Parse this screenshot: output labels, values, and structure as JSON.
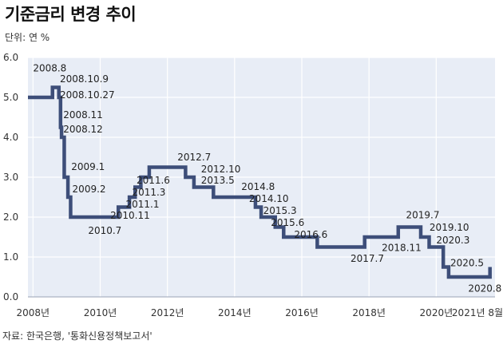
{
  "title": "기준금리 변경 추이",
  "unit_label": "단위: 연 %",
  "source": "자료: 한국은행, '통화신용정책보고서'",
  "colors": {
    "line": "#3d4e79",
    "plot_bg": "#e8edf6",
    "grid": "#ffffff"
  },
  "chart_data": {
    "type": "line",
    "title": "기준금리 변경 추이",
    "ylabel": "단위: 연 %",
    "ylim": [
      0,
      6
    ],
    "y_ticks": [
      "0.0",
      "1.0",
      "2.0",
      "3.0",
      "4.0",
      "5.0",
      "6.0"
    ],
    "x_ticks": [
      {
        "t": 2008.0,
        "label": "2008년"
      },
      {
        "t": 2010.0,
        "label": "2010년"
      },
      {
        "t": 2012.0,
        "label": "2012년"
      },
      {
        "t": 2014.0,
        "label": "2014년"
      },
      {
        "t": 2016.0,
        "label": "2016년"
      },
      {
        "t": 2018.0,
        "label": "2018년"
      },
      {
        "t": 2020.0,
        "label": "2020년"
      },
      {
        "t": 2021.6,
        "label": "2021년 8월"
      }
    ],
    "xlim": [
      2007.85,
      2021.75
    ],
    "grid": true,
    "series": [
      {
        "values": [
          {
            "t": 2007.85,
            "v": 5.0
          },
          {
            "t": 2008.58,
            "v": 5.25
          },
          {
            "t": 2008.77,
            "v": 5.0
          },
          {
            "t": 2008.82,
            "v": 4.25
          },
          {
            "t": 2008.85,
            "v": 4.0
          },
          {
            "t": 2008.93,
            "v": 3.0
          },
          {
            "t": 2009.04,
            "v": 2.5
          },
          {
            "t": 2009.12,
            "v": 2.0
          },
          {
            "t": 2010.54,
            "v": 2.25
          },
          {
            "t": 2010.87,
            "v": 2.5
          },
          {
            "t": 2011.04,
            "v": 2.75
          },
          {
            "t": 2011.21,
            "v": 3.0
          },
          {
            "t": 2011.46,
            "v": 3.25
          },
          {
            "t": 2012.54,
            "v": 3.0
          },
          {
            "t": 2012.79,
            "v": 2.75
          },
          {
            "t": 2013.37,
            "v": 2.5
          },
          {
            "t": 2014.62,
            "v": 2.25
          },
          {
            "t": 2014.79,
            "v": 2.0
          },
          {
            "t": 2015.21,
            "v": 1.75
          },
          {
            "t": 2015.46,
            "v": 1.5
          },
          {
            "t": 2016.46,
            "v": 1.25
          },
          {
            "t": 2017.87,
            "v": 1.5
          },
          {
            "t": 2018.87,
            "v": 1.75
          },
          {
            "t": 2019.54,
            "v": 1.5
          },
          {
            "t": 2019.79,
            "v": 1.25
          },
          {
            "t": 2020.21,
            "v": 0.75
          },
          {
            "t": 2020.37,
            "v": 0.5
          },
          {
            "t": 2021.6,
            "v": 0.5
          },
          {
            "t": 2021.6,
            "v": 0.75
          }
        ]
      }
    ],
    "annotations": [
      {
        "label": "2008.8",
        "t": 2008.0,
        "v": 5.65
      },
      {
        "label": "2008.10.9",
        "t": 2008.8,
        "v": 5.38
      },
      {
        "label": "2008.10.27",
        "t": 2008.8,
        "v": 4.98
      },
      {
        "label": "2008.11",
        "t": 2008.9,
        "v": 4.48
      },
      {
        "label": "2008.12",
        "t": 2008.9,
        "v": 4.12
      },
      {
        "label": "2009.1",
        "t": 2009.14,
        "v": 3.18
      },
      {
        "label": "2009.2",
        "t": 2009.17,
        "v": 2.62
      },
      {
        "label": "2010.7",
        "t": 2009.64,
        "v": 1.58
      },
      {
        "label": "2010.11",
        "t": 2010.3,
        "v": 1.96
      },
      {
        "label": "2011.1",
        "t": 2010.76,
        "v": 2.24
      },
      {
        "label": "2011.3",
        "t": 2010.95,
        "v": 2.54
      },
      {
        "label": "2011.6",
        "t": 2011.08,
        "v": 2.84
      },
      {
        "label": "2012.7",
        "t": 2012.3,
        "v": 3.42
      },
      {
        "label": "2012.10",
        "t": 2013.0,
        "v": 3.12
      },
      {
        "label": "2013.5",
        "t": 2013.0,
        "v": 2.84
      },
      {
        "label": "2014.8",
        "t": 2014.2,
        "v": 2.68
      },
      {
        "label": "2014.10",
        "t": 2014.43,
        "v": 2.38
      },
      {
        "label": "2015.3",
        "t": 2014.85,
        "v": 2.08
      },
      {
        "label": "2015.6",
        "t": 2015.08,
        "v": 1.78
      },
      {
        "label": "2016.6",
        "t": 2015.77,
        "v": 1.48
      },
      {
        "label": "2017.7",
        "t": 2017.45,
        "v": 0.88
      },
      {
        "label": "2018.11",
        "t": 2018.38,
        "v": 1.15
      },
      {
        "label": "2019.7",
        "t": 2019.1,
        "v": 1.97
      },
      {
        "label": "2019.10",
        "t": 2019.8,
        "v": 1.66
      },
      {
        "label": "2020.3",
        "t": 2020.0,
        "v": 1.34
      },
      {
        "label": "2020.5",
        "t": 2020.42,
        "v": 0.77
      },
      {
        "label": "2020.8",
        "t": 2020.95,
        "v": 0.13
      }
    ]
  }
}
